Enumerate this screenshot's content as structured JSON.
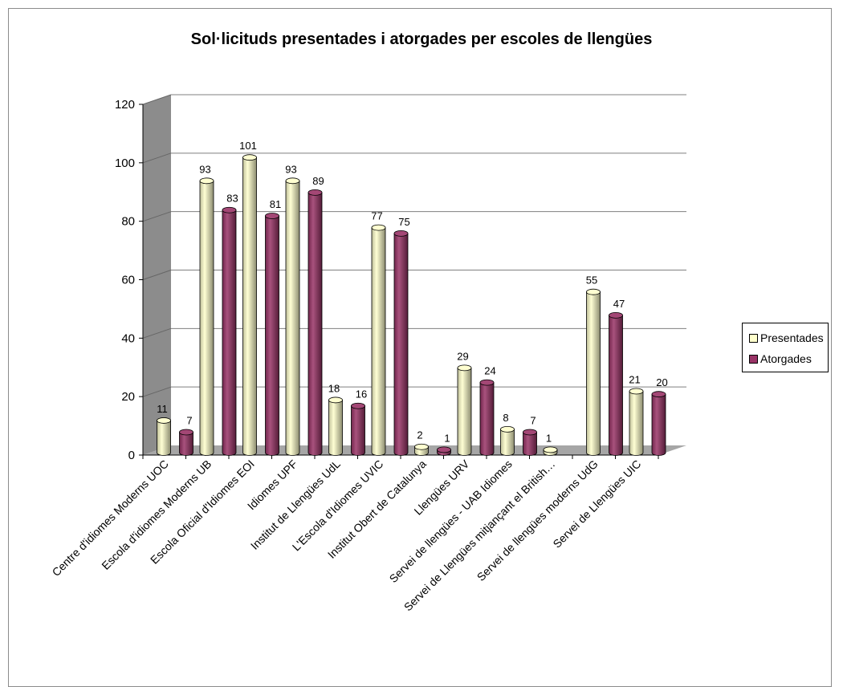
{
  "chart_data": {
    "type": "bar",
    "title": "Sol·licituds presentades i atorgades per escoles de llengües",
    "categories": [
      "Centre d'idiomes Moderns UOC",
      "Escola d'idiomes Moderns UB",
      "Escola Oficial d'Idiomes EOI",
      "Idiomes UPF",
      "Institut de Llengües UdL",
      "L'Escola d'Idiomes UVIC",
      "Institut Obert de Catalunya",
      "Llengües URV",
      "Servei de llengües - UAB Idiomes",
      "Servei de Llengües mitjançant el British…",
      "Servei de llengües moderns UdG",
      "Servei de Llengües UIC"
    ],
    "series": [
      {
        "name": "Presentades",
        "values": [
          11,
          93,
          101,
          93,
          18,
          77,
          2,
          29,
          8,
          1,
          55,
          21
        ],
        "color": "#ffffcc"
      },
      {
        "name": "Atorgades",
        "values": [
          7,
          83,
          81,
          89,
          16,
          75,
          1,
          24,
          7,
          null,
          47,
          20
        ],
        "color": "#993366"
      }
    ],
    "ylim": [
      0,
      120
    ],
    "yticks": [
      "0",
      "20",
      "40",
      "60",
      "80",
      "100",
      "120"
    ],
    "grid": true,
    "legend_position": "right",
    "style": "3d-cylinder"
  }
}
